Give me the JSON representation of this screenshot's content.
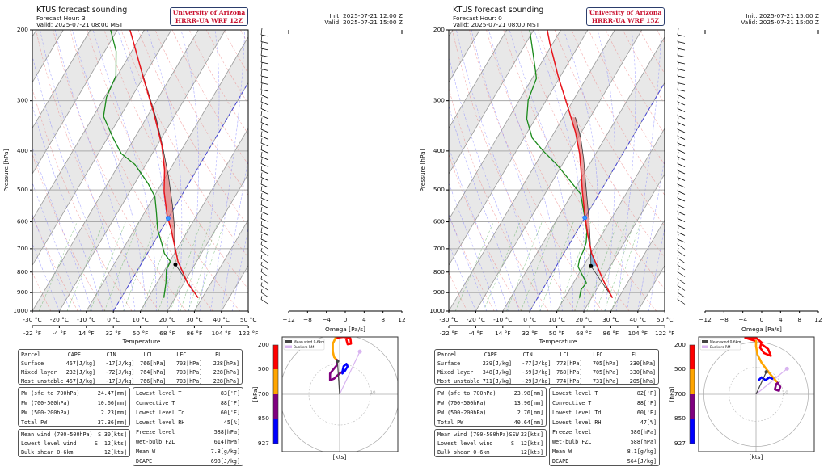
{
  "panels": [
    {
      "header": {
        "title": "KTUS forecast sounding",
        "forecast_hour": "Forecast Hour: 3",
        "valid_local": "Valid: 2025-07-21 08:00 MST",
        "logo_line1": "University of Arizona",
        "logo_line2": "HRRR-UA WRF 12Z",
        "init": "Init: 2025-07-21 12:00 Z",
        "valid_utc": "Valid: 2025-07-21 15:00 Z"
      },
      "parcel_table": {
        "headers": [
          "Parcel",
          "CAPE",
          "CIN",
          "LCL",
          "LFC",
          "EL"
        ],
        "rows": [
          [
            "Surface",
            "467[J/kg]",
            "-17[J/kg]",
            "766[hPa]",
            "703[hPa]",
            "228[hPa]"
          ],
          [
            "Mixed layer",
            "232[J/kg]",
            "-72[J/kg]",
            "764[hPa]",
            "703[hPa]",
            "228[hPa]"
          ],
          [
            "Most unstable",
            "467[J/kg]",
            "-17[J/kg]",
            "766[hPa]",
            "703[hPa]",
            "228[hPa]"
          ]
        ]
      },
      "pw_table": [
        [
          "PW (sfc to 700hPa)",
          "24.47[mm]"
        ],
        [
          "PW (700-500hPa)",
          "10.66[mm]"
        ],
        [
          "PW (500-200hPa)",
          "2.23[mm]"
        ],
        [
          "Total PW",
          "37.36[mm]"
        ]
      ],
      "wind_table": [
        [
          "Mean wind (700-500hPa)",
          "S",
          "30[kts]"
        ],
        [
          "Lowest level wind",
          "S",
          "12[kts]"
        ],
        [
          "Bulk shear 0-6km",
          "",
          "12[kts]"
        ]
      ],
      "thermo_table": [
        [
          "Lowest level T",
          "83['F]"
        ],
        [
          "Convective T",
          "88['F]"
        ],
        [
          "Lowest level Td",
          "60['F]"
        ],
        [
          "Lowest level RH",
          "45[%]"
        ],
        [
          "Freeze level",
          "588[hPa]"
        ],
        [
          "Wet-bulb FZL",
          "614[hPa]"
        ],
        [
          "Mean W",
          "7.8[g/kg]"
        ],
        [
          "DCAPE",
          "698[J/kg]"
        ]
      ]
    },
    {
      "header": {
        "title": "KTUS forecast sounding",
        "forecast_hour": "Forecast Hour: 0",
        "valid_local": "Valid: 2025-07-21 08:00 MST",
        "logo_line1": "University of Arizona",
        "logo_line2": "HRRR-UA WRF 15Z",
        "init": "Init: 2025-07-21 15:00 Z",
        "valid_utc": "Valid: 2025-07-21 15:00 Z"
      },
      "parcel_table": {
        "headers": [
          "Parcel",
          "CAPE",
          "CIN",
          "LCL",
          "LFC",
          "EL"
        ],
        "rows": [
          [
            "Surface",
            "239[J/kg]",
            "-77[J/kg]",
            "773[hPa]",
            "705[hPa]",
            "330[hPa]"
          ],
          [
            "Mixed layer",
            "348[J/kg]",
            "-59[J/kg]",
            "768[hPa]",
            "705[hPa]",
            "330[hPa]"
          ],
          [
            "Most unstable",
            "711[J/kg]",
            "-29[J/kg]",
            "774[hPa]",
            "731[hPa]",
            "205[hPa]"
          ]
        ]
      },
      "pw_table": [
        [
          "PW (sfc to 700hPa)",
          "23.98[mm]"
        ],
        [
          "PW (700-500hPa)",
          "13.90[mm]"
        ],
        [
          "PW (500-200hPa)",
          "2.76[mm]"
        ],
        [
          "Total PW",
          "40.64[mm]"
        ]
      ],
      "wind_table": [
        [
          "Mean wind (700-500hPa)",
          "SSW",
          "23[kts]"
        ],
        [
          "Lowest level wind",
          "S",
          "12[kts]"
        ],
        [
          "Bulk shear 0-6km",
          "",
          "12[kts]"
        ]
      ],
      "thermo_table": [
        [
          "Lowest level T",
          "82['F]"
        ],
        [
          "Convective T",
          "88['F]"
        ],
        [
          "Lowest level Td",
          "60['F]"
        ],
        [
          "Lowest level RH",
          "47[%]"
        ],
        [
          "Freeze level",
          "586[hPa]"
        ],
        [
          "Wet-bulb FZL",
          "588[hPa]"
        ],
        [
          "Mean W",
          "8.1[g/kg]"
        ],
        [
          "DCAPE",
          "564[J/kg]"
        ]
      ]
    }
  ],
  "colors": {
    "temperature": "#e8141b",
    "dewpoint": "#1a8a1a",
    "parcel": "#333333",
    "cape_shade": "#e06464",
    "cin_shade": "#6aa6d6",
    "freezing_marker": "#1e6fff",
    "band": "#e8e8e8"
  },
  "chart_data": [
    {
      "type": "line",
      "chart": "skew-t",
      "ylabel": "Pressure [hPa]",
      "xlabel": "Temperature",
      "y_scale": "log",
      "ylim": [
        1000,
        200
      ],
      "xlim_c": [
        -30,
        50
      ],
      "y_ticks": [
        "200",
        "300",
        "400",
        "500",
        "600",
        "700",
        "800",
        "900",
        "1000"
      ],
      "x_ticks_c": [
        "-30 °C",
        "-20 °C",
        "-10 °C",
        "0 °C",
        "10 °C",
        "20 °C",
        "30 °C",
        "40 °C",
        "50 °C"
      ],
      "x_ticks_f": [
        "-22 °F",
        "-4 °F",
        "14 °F",
        "32 °F",
        "50 °F",
        "68 °F",
        "86 °F",
        "104 °F",
        "122 °F"
      ],
      "temperature": [
        [
          927,
          28.5
        ],
        [
          851,
          21.3
        ],
        [
          753,
          13.1
        ],
        [
          626,
          3.5
        ],
        [
          580,
          -0.9
        ],
        [
          504,
          -7.4
        ],
        [
          446,
          -11.9
        ],
        [
          388,
          -18.2
        ],
        [
          322,
          -28.3
        ],
        [
          264,
          -39.7
        ],
        [
          219,
          -50.2
        ],
        [
          200,
          -55.3
        ]
      ],
      "dewpoint": [
        [
          927,
          15.8
        ],
        [
          851,
          13.3
        ],
        [
          789,
          10.6
        ],
        [
          753,
          10.3
        ],
        [
          719,
          6.3
        ],
        [
          676,
          2.9
        ],
        [
          626,
          -1.5
        ],
        [
          570,
          -5.5
        ],
        [
          520,
          -9.6
        ],
        [
          482,
          -15
        ],
        [
          432,
          -24.1
        ],
        [
          406,
          -31.5
        ],
        [
          371,
          -38
        ],
        [
          328,
          -46.2
        ],
        [
          294,
          -49.3
        ],
        [
          260,
          -50.5
        ],
        [
          226,
          -55.8
        ],
        [
          200,
          -62.5
        ]
      ],
      "parcel": [
        [
          927,
          28.5
        ],
        [
          766,
          12.8
        ],
        [
          697,
          8.9
        ],
        [
          626,
          4.8
        ],
        [
          545,
          -1.3
        ],
        [
          460,
          -9.3
        ],
        [
          382,
          -18.8
        ],
        [
          333,
          -26.1
        ],
        [
          228,
          -48
        ]
      ],
      "lcl": [
        766,
        12.8
      ],
      "freezing_level": [
        588,
        0
      ]
    },
    {
      "type": "line",
      "chart": "omega",
      "xlabel": "Omega [Pa/s]",
      "xlim": [
        -12,
        12
      ],
      "x_ticks": [
        "−12",
        "−8",
        "−4",
        "0",
        "4",
        "8",
        "12"
      ]
    },
    {
      "type": "line",
      "chart": "hodograph",
      "xlabel": "[kts]",
      "ring_label": "10",
      "legend": [
        "Mean wind 0-6km",
        "Bunkers RM"
      ],
      "colorbar_label": "[hPa]",
      "colorbar_ticks": [
        "200",
        "500",
        "700",
        "850",
        "927"
      ],
      "colorbar_colors": [
        "#ff0000",
        "#ffa500",
        "#800080",
        "#0000ff"
      ],
      "segments": [
        {
          "layer": "200-500",
          "uv": [
            [
              -1.3,
              18.4
            ],
            [
              1.3,
              18.7
            ],
            [
              3.5,
              18.2
            ],
            [
              3.7,
              16.5
            ],
            [
              2.6,
              16.3
            ],
            [
              2.2,
              17.8
            ]
          ]
        },
        {
          "layer": "500-700",
          "uv": [
            [
              -1.3,
              18.4
            ],
            [
              -2.2,
              16.5
            ],
            [
              -2.2,
              13.9
            ],
            [
              -1.8,
              12.1
            ],
            [
              -0.9,
              11.2
            ]
          ]
        },
        {
          "layer": "700-850",
          "uv": [
            [
              -0.9,
              11.2
            ],
            [
              -0.9,
              9.5
            ],
            [
              -3.1,
              6.8
            ],
            [
              -3.1,
              4.6
            ],
            [
              -1.8,
              5.1
            ],
            [
              0,
              6.8
            ],
            [
              0.9,
              7.3
            ]
          ]
        },
        {
          "layer": "850-927",
          "uv": [
            [
              0.9,
              7.3
            ],
            [
              1.3,
              9.1
            ],
            [
              2.2,
              9.9
            ],
            [
              2.6,
              9.1
            ],
            [
              1.8,
              7.7
            ],
            [
              0.9,
              6.8
            ]
          ]
        }
      ],
      "mean_wind": [
        -0.7,
        10.8
      ],
      "bunkers_rm": [
        6.6,
        13.9
      ]
    },
    {
      "type": "line",
      "chart": "skew-t",
      "ylabel": "Pressure [hPa]",
      "xlabel": "Temperature",
      "y_scale": "log",
      "ylim": [
        1000,
        200
      ],
      "xlim_c": [
        -30,
        50
      ],
      "y_ticks": [
        "200",
        "300",
        "400",
        "500",
        "600",
        "700",
        "800",
        "900",
        "1000"
      ],
      "x_ticks_c": [
        "-30 °C",
        "-20 °C",
        "-10 °C",
        "0 °C",
        "10 °C",
        "20 °C",
        "30 °C",
        "40 °C",
        "50 °C"
      ],
      "x_ticks_f": [
        "-22 °F",
        "-4 °F",
        "14 °F",
        "32 °F",
        "50 °F",
        "68 °F",
        "86 °F",
        "104 °F",
        "122 °F"
      ],
      "temperature": [
        [
          927,
          27.7
        ],
        [
          839,
          20.5
        ],
        [
          719,
          10.3
        ],
        [
          645,
          4.7
        ],
        [
          580,
          -0.4
        ],
        [
          504,
          -6.7
        ],
        [
          446,
          -11.9
        ],
        [
          406,
          -16
        ],
        [
          359,
          -22.2
        ],
        [
          308,
          -31.1
        ],
        [
          260,
          -41
        ],
        [
          216,
          -51.1
        ],
        [
          200,
          -55
        ]
      ],
      "dewpoint": [
        [
          927,
          15.5
        ],
        [
          885,
          14.3
        ],
        [
          851,
          14.8
        ],
        [
          813,
          11.5
        ],
        [
          776,
          8.2
        ],
        [
          741,
          7
        ],
        [
          708,
          6.7
        ],
        [
          676,
          5.9
        ],
        [
          635,
          3.8
        ],
        [
          588,
          0.1
        ],
        [
          512,
          -6.7
        ],
        [
          474,
          -13.6
        ],
        [
          432,
          -22.1
        ],
        [
          400,
          -30
        ],
        [
          371,
          -37
        ],
        [
          333,
          -43.1
        ],
        [
          299,
          -46.7
        ],
        [
          264,
          -48.4
        ],
        [
          248,
          -51.3
        ],
        [
          200,
          -61.5
        ]
      ],
      "parcel": [
        [
          927,
          27.7
        ],
        [
          773,
          12.8
        ],
        [
          705,
          9.2
        ],
        [
          588,
          1.6
        ],
        [
          504,
          -5.2
        ],
        [
          419,
          -13.3
        ],
        [
          371,
          -19
        ],
        [
          330,
          -25.5
        ]
      ],
      "lcl": [
        773,
        12.8
      ],
      "freezing_level": [
        586,
        0
      ]
    },
    {
      "type": "line",
      "chart": "omega",
      "xlabel": "Omega [Pa/s]",
      "xlim": [
        -12,
        12
      ],
      "x_ticks": [
        "−12",
        "−8",
        "−4",
        "0",
        "4",
        "8",
        "12"
      ]
    },
    {
      "type": "line",
      "chart": "hodograph",
      "xlabel": "[kts]",
      "ring_label": "10",
      "legend": [
        "Mean wind 0-6km",
        "Bunkers RM"
      ],
      "colorbar_label": "[hPa]",
      "colorbar_ticks": [
        "200",
        "500",
        "700",
        "850",
        "927"
      ],
      "colorbar_colors": [
        "#ff0000",
        "#ffa500",
        "#800080",
        "#0000ff"
      ],
      "segments": [
        {
          "layer": "200-500",
          "uv": [
            [
              0,
              19.8
            ],
            [
              -4,
              21
            ],
            [
              0,
              21
            ],
            [
              2,
              19.3
            ],
            [
              1.5,
              17.3
            ],
            [
              3,
              15.3
            ],
            [
              5.5,
              14.3
            ],
            [
              4.5,
              16.8
            ],
            [
              2.5,
              18.3
            ]
          ]
        },
        {
          "layer": "500-700",
          "uv": [
            [
              0,
              19.8
            ],
            [
              0,
              17.8
            ],
            [
              0.5,
              14.8
            ],
            [
              2,
              11.8
            ],
            [
              5,
              7.8
            ],
            [
              8,
              4.3
            ]
          ]
        },
        {
          "layer": "700-850",
          "uv": [
            [
              8,
              4.3
            ],
            [
              9,
              2.8
            ],
            [
              8.5,
              1.3
            ],
            [
              7,
              1.8
            ],
            [
              7.5,
              3.8
            ]
          ]
        },
        {
          "layer": "850-927",
          "uv": [
            [
              1,
              5.3
            ],
            [
              2,
              6.3
            ],
            [
              3.5,
              5.3
            ],
            [
              5,
              6.3
            ],
            [
              6,
              5.8
            ]
          ]
        }
      ],
      "mean_wind": [
        3.8,
        8.3
      ],
      "bunkers_rm": [
        11.5,
        9.5
      ]
    }
  ]
}
